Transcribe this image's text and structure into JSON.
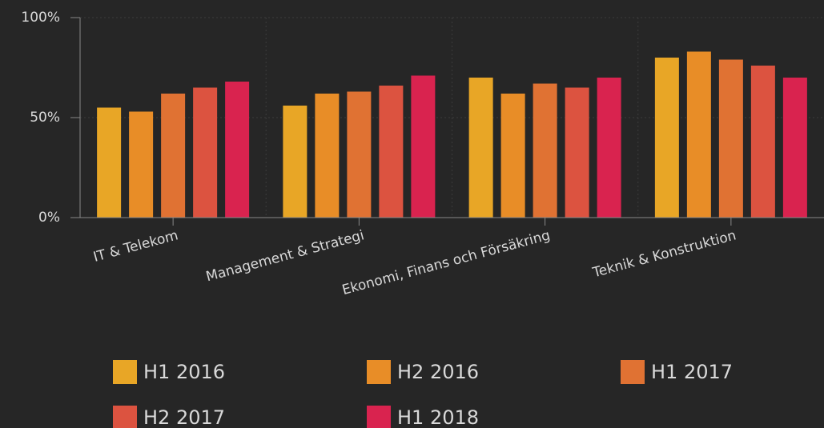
{
  "chart_data": {
    "type": "bar",
    "categories": [
      "IT & Telekom",
      "Management & Strategi",
      "Ekonomi, Finans och Försäkring",
      "Teknik & Konstruktion"
    ],
    "series": [
      {
        "name": "H1 2016",
        "color": "#e8a626",
        "values": [
          55,
          56,
          70,
          80
        ]
      },
      {
        "name": "H2 2016",
        "color": "#e88d27",
        "values": [
          53,
          62,
          62,
          83
        ]
      },
      {
        "name": "H1 2017",
        "color": "#e07233",
        "values": [
          62,
          63,
          67,
          79
        ]
      },
      {
        "name": "H2 2017",
        "color": "#dc5340",
        "values": [
          65,
          66,
          65,
          76
        ]
      },
      {
        "name": "H1 2018",
        "color": "#d9234f",
        "values": [
          68,
          71,
          70,
          70
        ]
      }
    ],
    "ylim": [
      0,
      100
    ],
    "yticks": [
      {
        "value": 0,
        "label": "0%"
      },
      {
        "value": 50,
        "label": "50%"
      },
      {
        "value": 100,
        "label": "100%"
      }
    ],
    "grid": true
  }
}
